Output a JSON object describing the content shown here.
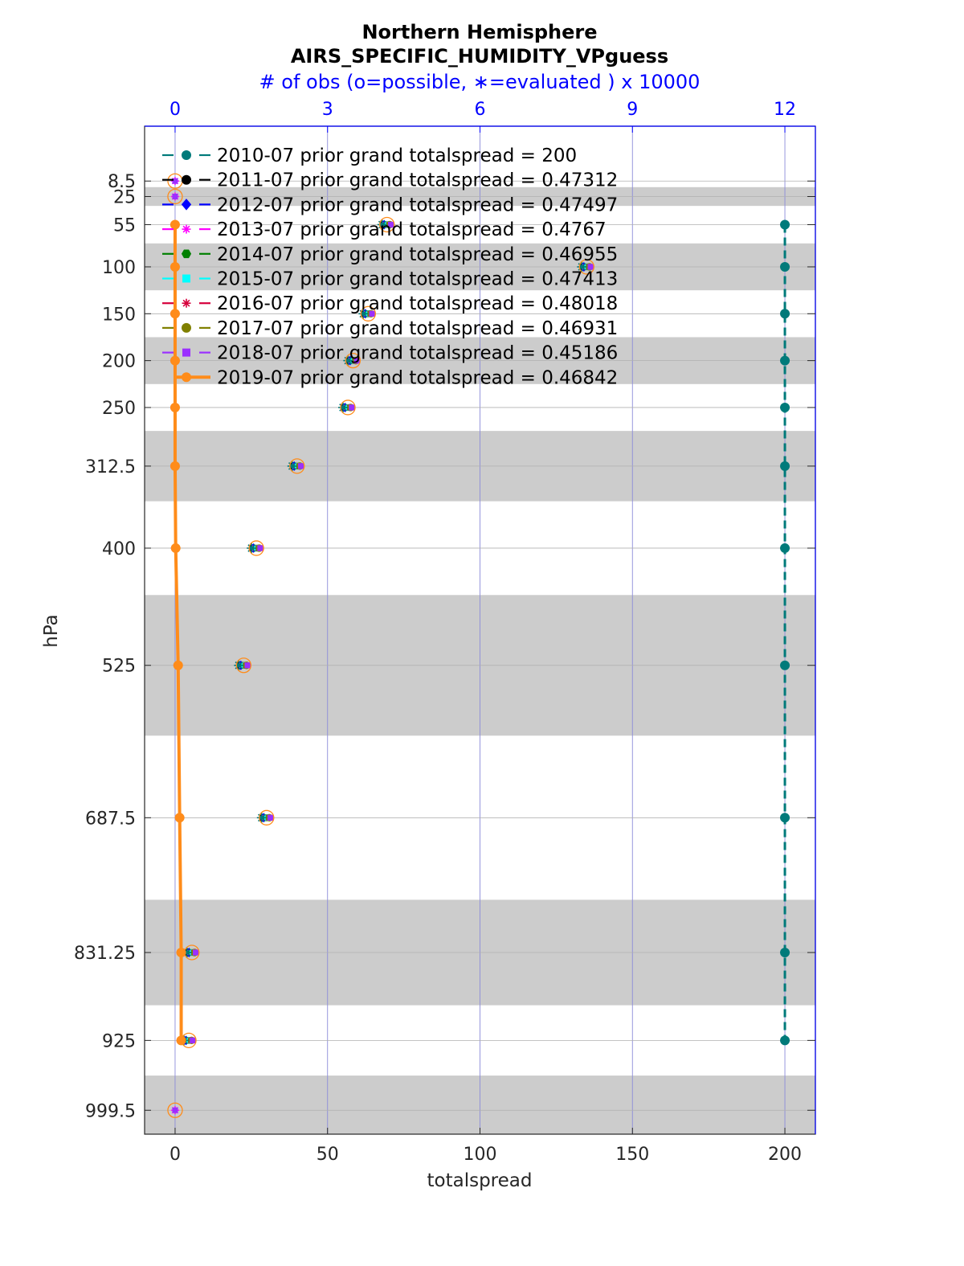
{
  "chart_data": {
    "type": "scatter",
    "title": "Northern Hemisphere",
    "subtitle": "AIRS_SPECIFIC_HUMIDITY_VPguess",
    "top_axis_label": "# of obs (o=possible, ∗=evaluated ) x 10000",
    "xlabel": "totalspread",
    "ylabel": "hPa",
    "xlim": [
      -10,
      210
    ],
    "x_ticks": [
      "0",
      "50",
      "100",
      "150",
      "200"
    ],
    "x_tick_values": [
      0,
      50,
      100,
      150,
      200
    ],
    "top_xlim": [
      -0.6,
      12.6
    ],
    "top_ticks": [
      "0",
      "3",
      "6",
      "9",
      "12"
    ],
    "top_tick_values": [
      0,
      3,
      6,
      9,
      12
    ],
    "ylim": [
      1025,
      -50
    ],
    "y_ticks": [
      "8.5",
      "25",
      "55",
      "100",
      "150",
      "200",
      "250",
      "312.5",
      "400",
      "525",
      "687.5",
      "831.25",
      "925",
      "999.5"
    ],
    "levels": [
      8.5,
      25,
      55,
      100,
      150,
      200,
      250,
      312.5,
      400,
      525,
      687.5,
      831.25,
      925,
      999.5
    ],
    "shaded_bands": [
      [
        15,
        35
      ],
      [
        75,
        125
      ],
      [
        175,
        225
      ],
      [
        275,
        350
      ],
      [
        450,
        600
      ],
      [
        775,
        887.5
      ],
      [
        962.5,
        1037
      ]
    ],
    "grid": true,
    "legend_location": "top-left",
    "series": [
      {
        "name": "2010-07 prior grand totalspread = 200",
        "color": "#007a7a",
        "marker": "circle",
        "line": "dashed",
        "levels": [
          55,
          100,
          150,
          200,
          250,
          312.5,
          400,
          525,
          687.5,
          831.25,
          925
        ],
        "values": [
          200,
          200,
          200,
          200,
          200,
          200,
          200,
          200,
          200,
          200,
          200
        ],
        "obs_count": [
          4.2,
          8.1,
          3.8,
          3.5,
          3.4,
          2.4,
          1.6,
          1.3,
          1.8,
          0.3,
          0.3
        ]
      },
      {
        "name": "2011-07 prior grand totalspread = 0.47312",
        "color": "#000000",
        "marker": "circle",
        "line": "dashed",
        "values": []
      },
      {
        "name": "2012-07 prior grand totalspread = 0.47497",
        "color": "#0000ff",
        "marker": "diamond",
        "line": "dashed",
        "values": []
      },
      {
        "name": "2013-07 prior grand totalspread = 0.4767",
        "color": "#ff00ff",
        "marker": "star",
        "line": "dashed",
        "values": []
      },
      {
        "name": "2014-07 prior grand totalspread = 0.46955",
        "color": "#008000",
        "marker": "hexagon",
        "line": "dashed",
        "values": []
      },
      {
        "name": "2015-07 prior grand totalspread = 0.47413",
        "color": "#00ffff",
        "marker": "square",
        "line": "dashed",
        "values": []
      },
      {
        "name": "2016-07 prior grand totalspread = 0.48018",
        "color": "#d6003c",
        "marker": "star",
        "line": "dashed",
        "values": []
      },
      {
        "name": "2017-07 prior grand totalspread = 0.46931",
        "color": "#808000",
        "marker": "circle",
        "line": "dashed",
        "values": []
      },
      {
        "name": "2018-07 prior grand totalspread = 0.45186",
        "color": "#9b30ff",
        "marker": "square",
        "line": "dashed",
        "values": []
      },
      {
        "name": "2019-07 prior grand totalspread = 0.46842",
        "color": "#ff8c1a",
        "marker": "circle",
        "line": "solid",
        "levels": [
          55,
          100,
          150,
          200,
          250,
          312.5,
          400,
          525,
          687.5,
          831.25,
          925
        ],
        "values": [
          0.0,
          0.0,
          0.0,
          0.0,
          0.0,
          0.0,
          0.2,
          1.0,
          1.5,
          2.0,
          2.0
        ],
        "obs_count": [
          4.2,
          8.1,
          3.8,
          3.5,
          3.4,
          2.4,
          1.6,
          1.3,
          1.8,
          0.3,
          0.3
        ]
      }
    ],
    "obs_clusters": [
      {
        "level": 8.5,
        "obs": 0.0
      },
      {
        "level": 25,
        "obs": 0.0
      },
      {
        "level": 55,
        "obs": 4.17
      },
      {
        "level": 100,
        "obs": 8.1
      },
      {
        "level": 150,
        "obs": 3.8
      },
      {
        "level": 200,
        "obs": 3.5
      },
      {
        "level": 250,
        "obs": 3.4
      },
      {
        "level": 312.5,
        "obs": 2.4
      },
      {
        "level": 400,
        "obs": 1.6
      },
      {
        "level": 525,
        "obs": 1.35
      },
      {
        "level": 687.5,
        "obs": 1.8
      },
      {
        "level": 831.25,
        "obs": 0.33
      },
      {
        "level": 925,
        "obs": 0.27
      },
      {
        "level": 999.5,
        "obs": 0.0
      }
    ]
  }
}
